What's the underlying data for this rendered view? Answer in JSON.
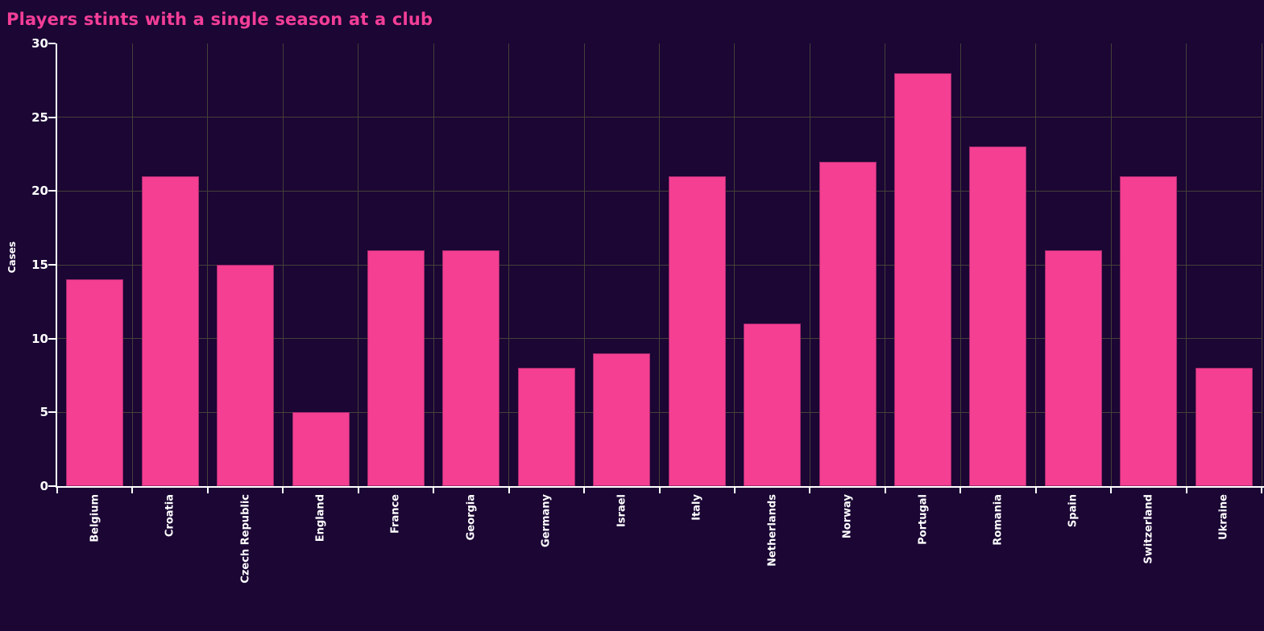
{
  "page": {
    "background": "#1b0634"
  },
  "chart_data": {
    "type": "bar",
    "title": "Players stints with a single season at a club",
    "xlabel": "",
    "ylabel": "Cases",
    "categories": [
      "Belgium",
      "Croatia",
      "Czech Republic",
      "England",
      "France",
      "Georgia",
      "Germany",
      "Israel",
      "Italy",
      "Netherlands",
      "Norway",
      "Portugal",
      "Romania",
      "Spain",
      "Switzerland",
      "Ukraine"
    ],
    "values": [
      14,
      21,
      15,
      5,
      16,
      16,
      8,
      9,
      21,
      11,
      22,
      28,
      23,
      16,
      21,
      8
    ],
    "ylim": [
      0,
      30
    ],
    "yticks": [
      0,
      5,
      10,
      15,
      20,
      25,
      30
    ],
    "grid": true,
    "legend": "none",
    "colors": {
      "title": "#f33e97",
      "bar_fill": "#f43f92",
      "bar_edge": "#a52a6e",
      "gridline": "#454038",
      "axis": "#ffffff",
      "tick_label": "#ffffff"
    }
  }
}
